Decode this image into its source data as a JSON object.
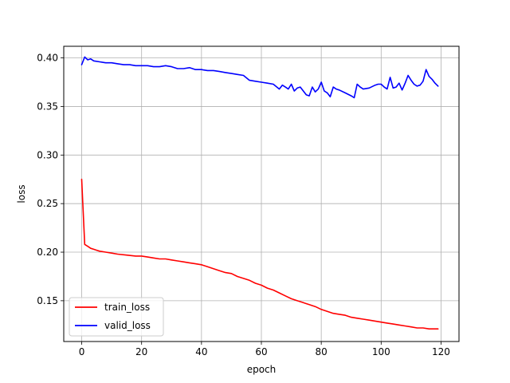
{
  "chart_data": {
    "type": "line",
    "title": "",
    "xlabel": "epoch",
    "ylabel": "loss",
    "xlim": [
      -6,
      126
    ],
    "ylim": [
      0.108,
      0.412
    ],
    "xticks": [
      0,
      20,
      40,
      60,
      80,
      100,
      120
    ],
    "yticks": [
      0.15,
      0.2,
      0.25,
      0.3,
      0.35,
      0.4
    ],
    "ytick_labels": [
      "0.15",
      "0.20",
      "0.25",
      "0.30",
      "0.35",
      "0.40"
    ],
    "grid": true,
    "legend_position": "lower-left",
    "series": [
      {
        "name": "train_loss",
        "color": "#ff0000",
        "points": [
          [
            0,
            0.275
          ],
          [
            1,
            0.208
          ],
          [
            2,
            0.206
          ],
          [
            3,
            0.204
          ],
          [
            4,
            0.203
          ],
          [
            5,
            0.202
          ],
          [
            6,
            0.201
          ],
          [
            8,
            0.2
          ],
          [
            10,
            0.199
          ],
          [
            12,
            0.198
          ],
          [
            15,
            0.197
          ],
          [
            18,
            0.196
          ],
          [
            20,
            0.196
          ],
          [
            22,
            0.195
          ],
          [
            24,
            0.194
          ],
          [
            26,
            0.193
          ],
          [
            28,
            0.193
          ],
          [
            30,
            0.192
          ],
          [
            32,
            0.191
          ],
          [
            34,
            0.19
          ],
          [
            36,
            0.189
          ],
          [
            38,
            0.188
          ],
          [
            40,
            0.187
          ],
          [
            42,
            0.185
          ],
          [
            44,
            0.183
          ],
          [
            46,
            0.181
          ],
          [
            48,
            0.179
          ],
          [
            50,
            0.178
          ],
          [
            52,
            0.175
          ],
          [
            54,
            0.173
          ],
          [
            56,
            0.171
          ],
          [
            58,
            0.168
          ],
          [
            60,
            0.166
          ],
          [
            62,
            0.163
          ],
          [
            64,
            0.161
          ],
          [
            66,
            0.158
          ],
          [
            68,
            0.155
          ],
          [
            70,
            0.152
          ],
          [
            72,
            0.15
          ],
          [
            74,
            0.148
          ],
          [
            76,
            0.146
          ],
          [
            78,
            0.144
          ],
          [
            80,
            0.141
          ],
          [
            82,
            0.139
          ],
          [
            84,
            0.137
          ],
          [
            86,
            0.136
          ],
          [
            88,
            0.135
          ],
          [
            90,
            0.133
          ],
          [
            92,
            0.132
          ],
          [
            94,
            0.131
          ],
          [
            96,
            0.13
          ],
          [
            98,
            0.129
          ],
          [
            100,
            0.128
          ],
          [
            102,
            0.127
          ],
          [
            104,
            0.126
          ],
          [
            106,
            0.125
          ],
          [
            108,
            0.124
          ],
          [
            110,
            0.123
          ],
          [
            112,
            0.122
          ],
          [
            114,
            0.122
          ],
          [
            116,
            0.121
          ],
          [
            118,
            0.121
          ],
          [
            119,
            0.121
          ]
        ]
      },
      {
        "name": "valid_loss",
        "color": "#0000ff",
        "points": [
          [
            0,
            0.393
          ],
          [
            1,
            0.401
          ],
          [
            2,
            0.398
          ],
          [
            3,
            0.399
          ],
          [
            4,
            0.397
          ],
          [
            6,
            0.396
          ],
          [
            8,
            0.395
          ],
          [
            10,
            0.395
          ],
          [
            12,
            0.394
          ],
          [
            14,
            0.393
          ],
          [
            16,
            0.393
          ],
          [
            18,
            0.392
          ],
          [
            20,
            0.392
          ],
          [
            22,
            0.392
          ],
          [
            24,
            0.391
          ],
          [
            26,
            0.391
          ],
          [
            28,
            0.392
          ],
          [
            30,
            0.391
          ],
          [
            32,
            0.389
          ],
          [
            34,
            0.389
          ],
          [
            36,
            0.39
          ],
          [
            38,
            0.388
          ],
          [
            40,
            0.388
          ],
          [
            42,
            0.387
          ],
          [
            44,
            0.387
          ],
          [
            46,
            0.386
          ],
          [
            48,
            0.385
          ],
          [
            50,
            0.384
          ],
          [
            52,
            0.383
          ],
          [
            54,
            0.382
          ],
          [
            56,
            0.377
          ],
          [
            58,
            0.376
          ],
          [
            60,
            0.375
          ],
          [
            62,
            0.374
          ],
          [
            64,
            0.373
          ],
          [
            66,
            0.368
          ],
          [
            67,
            0.372
          ],
          [
            68,
            0.37
          ],
          [
            69,
            0.368
          ],
          [
            70,
            0.373
          ],
          [
            71,
            0.366
          ],
          [
            72,
            0.369
          ],
          [
            73,
            0.37
          ],
          [
            74,
            0.366
          ],
          [
            75,
            0.362
          ],
          [
            76,
            0.361
          ],
          [
            77,
            0.37
          ],
          [
            78,
            0.365
          ],
          [
            79,
            0.368
          ],
          [
            80,
            0.375
          ],
          [
            81,
            0.366
          ],
          [
            82,
            0.364
          ],
          [
            83,
            0.36
          ],
          [
            84,
            0.37
          ],
          [
            85,
            0.368
          ],
          [
            86,
            0.367
          ],
          [
            88,
            0.364
          ],
          [
            90,
            0.361
          ],
          [
            91,
            0.359
          ],
          [
            92,
            0.373
          ],
          [
            93,
            0.37
          ],
          [
            94,
            0.368
          ],
          [
            96,
            0.369
          ],
          [
            98,
            0.372
          ],
          [
            99,
            0.373
          ],
          [
            100,
            0.373
          ],
          [
            101,
            0.37
          ],
          [
            102,
            0.368
          ],
          [
            103,
            0.38
          ],
          [
            104,
            0.369
          ],
          [
            105,
            0.37
          ],
          [
            106,
            0.374
          ],
          [
            107,
            0.367
          ],
          [
            108,
            0.374
          ],
          [
            109,
            0.382
          ],
          [
            110,
            0.377
          ],
          [
            111,
            0.373
          ],
          [
            112,
            0.371
          ],
          [
            113,
            0.372
          ],
          [
            114,
            0.376
          ],
          [
            115,
            0.388
          ],
          [
            116,
            0.381
          ],
          [
            117,
            0.378
          ],
          [
            118,
            0.374
          ],
          [
            119,
            0.371
          ]
        ]
      }
    ]
  }
}
